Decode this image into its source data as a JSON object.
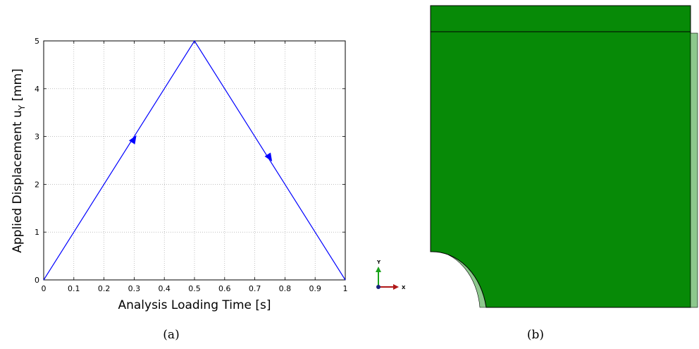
{
  "chart_data": {
    "type": "line",
    "xlabel": "Analysis Loading Time [s]",
    "ylabel_main": "Applied Displacement u",
    "ylabel_sub": "Y",
    "ylabel_unit": " [mm]",
    "xlim": [
      0,
      1
    ],
    "ylim": [
      0,
      5
    ],
    "x_ticks": [
      "0",
      "0.1",
      "0.2",
      "0.3",
      "0.4",
      "0.5",
      "0.6",
      "0.7",
      "0.8",
      "0.9",
      "1"
    ],
    "y_ticks": [
      "0",
      "1",
      "2",
      "3",
      "4",
      "5"
    ],
    "grid": true,
    "series": [
      {
        "x": [
          0,
          0.5,
          1
        ],
        "y": [
          0,
          5,
          0
        ],
        "color": "#0000ff"
      }
    ],
    "arrows": [
      {
        "x": 0.3,
        "y": 2.95,
        "direction": "up"
      },
      {
        "x": 0.75,
        "y": 2.55,
        "direction": "down"
      }
    ]
  },
  "captions": {
    "a": "(a)",
    "b": "(b)"
  },
  "model_view": {
    "fill_color": "#078a07",
    "light_color": "#8dc88d",
    "triad": {
      "y_label": "Y",
      "x_label": "X"
    }
  }
}
